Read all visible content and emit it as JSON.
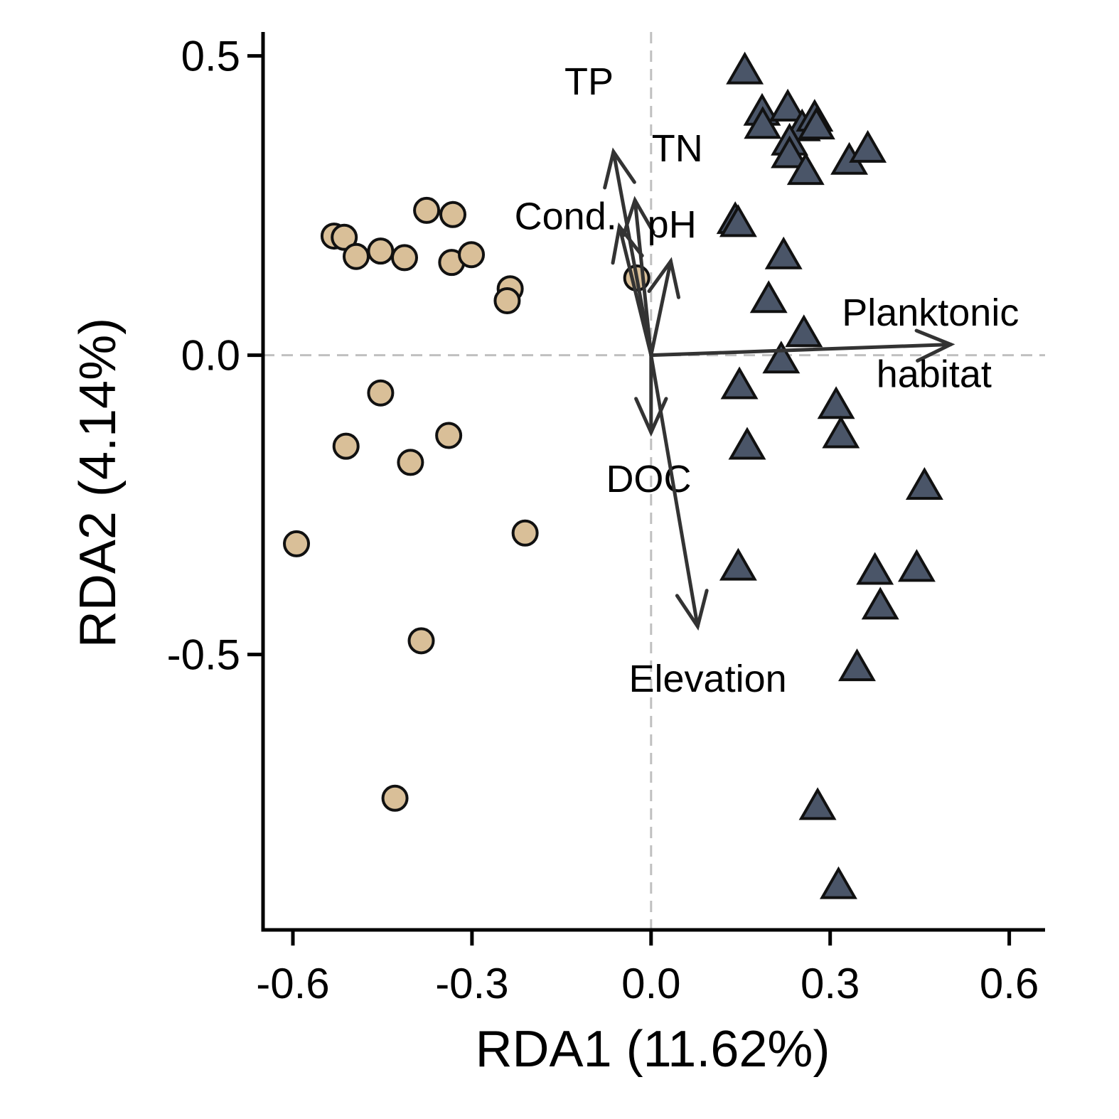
{
  "chart_data": {
    "type": "scatter",
    "xlabel": "RDA1 (11.62%)",
    "ylabel": "RDA2 (4.14%)",
    "xlim": [
      -0.65,
      0.66
    ],
    "ylim": [
      -0.96,
      0.54
    ],
    "xticks": [
      -0.6,
      -0.3,
      0.0,
      0.3,
      0.6
    ],
    "xtick_labels": [
      "-0.6",
      "-0.3",
      "0.0",
      "0.3",
      "0.6"
    ],
    "yticks": [
      0.5,
      0.0,
      -0.5
    ],
    "ytick_labels": [
      "0.5",
      "0.0",
      "-0.5"
    ],
    "grid": false,
    "reference_lines": {
      "x": 0,
      "y": 0,
      "style": "dashed",
      "color": "#c0c0c0"
    },
    "colors": {
      "circles_fill": "#d9bf98",
      "triangles_fill": "#4a5568",
      "outline": "#111111",
      "vector": "#333333"
    },
    "series": [
      {
        "marker": "circle",
        "points": [
          [
            -0.376,
            0.242
          ],
          [
            -0.332,
            0.235
          ],
          [
            -0.531,
            0.199
          ],
          [
            -0.514,
            0.197
          ],
          [
            -0.494,
            0.165
          ],
          [
            -0.453,
            0.174
          ],
          [
            -0.413,
            0.163
          ],
          [
            -0.334,
            0.155
          ],
          [
            -0.301,
            0.168
          ],
          [
            -0.236,
            0.111
          ],
          [
            -0.241,
            0.091
          ],
          [
            -0.024,
            0.129
          ],
          [
            -0.453,
            -0.063
          ],
          [
            -0.511,
            -0.152
          ],
          [
            -0.339,
            -0.134
          ],
          [
            -0.403,
            -0.179
          ],
          [
            -0.211,
            -0.297
          ],
          [
            -0.594,
            -0.315
          ],
          [
            -0.385,
            -0.477
          ],
          [
            -0.429,
            -0.74
          ]
        ]
      },
      {
        "marker": "triangle",
        "points": [
          [
            0.157,
            0.473
          ],
          [
            0.186,
            0.404
          ],
          [
            0.229,
            0.411
          ],
          [
            0.187,
            0.382
          ],
          [
            0.253,
            0.378
          ],
          [
            0.274,
            0.394
          ],
          [
            0.277,
            0.381
          ],
          [
            0.232,
            0.354
          ],
          [
            0.232,
            0.333
          ],
          [
            0.259,
            0.305
          ],
          [
            0.332,
            0.322
          ],
          [
            0.363,
            0.342
          ],
          [
            0.141,
            0.223
          ],
          [
            0.146,
            0.218
          ],
          [
            0.222,
            0.164
          ],
          [
            0.197,
            0.091
          ],
          [
            0.256,
            0.034
          ],
          [
            0.218,
            -0.01
          ],
          [
            0.148,
            -0.053
          ],
          [
            0.31,
            -0.086
          ],
          [
            0.318,
            -0.135
          ],
          [
            0.161,
            -0.154
          ],
          [
            0.458,
            -0.221
          ],
          [
            0.146,
            -0.356
          ],
          [
            0.375,
            -0.363
          ],
          [
            0.445,
            -0.358
          ],
          [
            0.384,
            -0.421
          ],
          [
            0.345,
            -0.524
          ],
          [
            0.279,
            -0.756
          ],
          [
            0.314,
            -0.888
          ]
        ]
      }
    ],
    "vectors": [
      {
        "label": "TP",
        "x": -0.063,
        "y": 0.34,
        "lx": -0.104,
        "ly": 0.457
      },
      {
        "label": "TN",
        "x": -0.027,
        "y": 0.259,
        "lx": 0.044,
        "ly": 0.345
      },
      {
        "label": "Cond.",
        "x": -0.053,
        "y": 0.215,
        "lx": -0.143,
        "ly": 0.232
      },
      {
        "label": "pH",
        "x": 0.033,
        "y": 0.157,
        "lx": 0.035,
        "ly": 0.218
      },
      {
        "label": "Planktonic",
        "x": 0.502,
        "y": 0.018,
        "lx": 0.468,
        "ly": 0.071
      },
      {
        "label": "habitat",
        "x": 0.502,
        "y": 0.018,
        "lx": 0.474,
        "ly": -0.032
      },
      {
        "label": "DOC",
        "x": 0.0,
        "y": -0.129,
        "lx": -0.004,
        "ly": -0.207
      },
      {
        "label": "Elevation",
        "x": 0.078,
        "y": -0.453,
        "lx": 0.095,
        "ly": -0.541
      }
    ]
  }
}
